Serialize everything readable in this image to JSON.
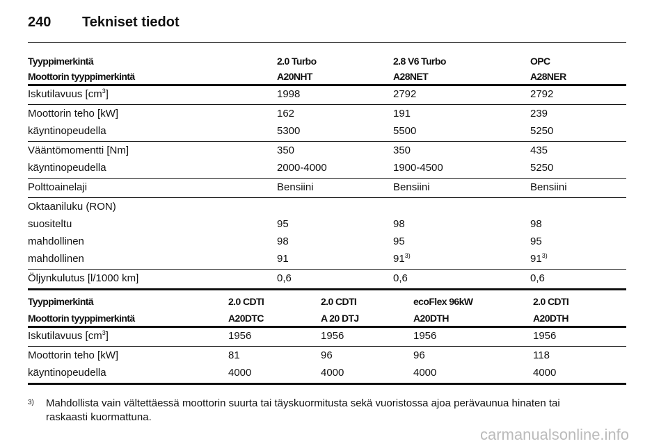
{
  "header": {
    "page": "240",
    "title": "Tekniset tiedot"
  },
  "tables": [
    {
      "head": [
        [
          "Tyyppimerkintä",
          "2.0 Turbo",
          "2.8 V6 Turbo",
          "OPC"
        ],
        [
          "Moottorin tyyppimerkintä",
          "A20NHT",
          "A28NET",
          "A28NER"
        ]
      ],
      "groups": [
        [
          [
            {
              "text": "Iskutilavuus [cm",
              "sup": "3",
              "tail": "]"
            },
            "1998",
            "2792",
            "2792"
          ]
        ],
        [
          [
            "Moottorin teho [kW]",
            "162",
            "191",
            "239"
          ],
          [
            "käyntinopeudella",
            "5300",
            "5500",
            "5250"
          ]
        ],
        [
          [
            "Vääntömomentti [Nm]",
            "350",
            "350",
            "435"
          ],
          [
            "käyntinopeudella",
            "2000-4000",
            "1900-4500",
            "5250"
          ]
        ],
        [
          [
            "Polttoainelaji",
            "Bensiini",
            "Bensiini",
            "Bensiini"
          ]
        ],
        [
          [
            "Oktaaniluku (RON)"
          ],
          [
            "suositeltu",
            "95",
            "98",
            "98"
          ],
          [
            "mahdollinen",
            "98",
            "95",
            "95"
          ],
          [
            "mahdollinen",
            "91",
            {
              "text": "91",
              "sup": "3)"
            },
            {
              "text": "91",
              "sup": "3)"
            }
          ]
        ],
        [
          [
            "Öljynkulutus [l/1000 km]",
            "0,6",
            "0,6",
            "0,6"
          ]
        ]
      ]
    },
    {
      "head": [
        [
          "Tyyppimerkintä",
          "2.0 CDTI",
          "2.0 CDTI",
          "ecoFlex 96kW",
          "2.0 CDTI"
        ],
        [
          "Moottorin tyyppimerkintä",
          "A20DTC",
          "A 20 DTJ",
          "A20DTH",
          "A20DTH"
        ]
      ],
      "groups": [
        [
          [
            {
              "text": "Iskutilavuus [cm",
              "sup": "3",
              "tail": "]"
            },
            "1956",
            "1956",
            "1956",
            "1956"
          ]
        ],
        [
          [
            "Moottorin teho [kW]",
            "81",
            "96",
            "96",
            "118"
          ],
          [
            "käyntinopeudella",
            "4000",
            "4000",
            "4000",
            "4000"
          ]
        ]
      ]
    }
  ],
  "footnote": {
    "mark": "3)",
    "text": "Mahdollista vain vältettäessä moottorin suurta tai täyskuormitusta sekä vuoristossa ajoa perävaunua hinaten tai raskaasti kuormattuna."
  },
  "watermark": "carmanualsonline.info"
}
